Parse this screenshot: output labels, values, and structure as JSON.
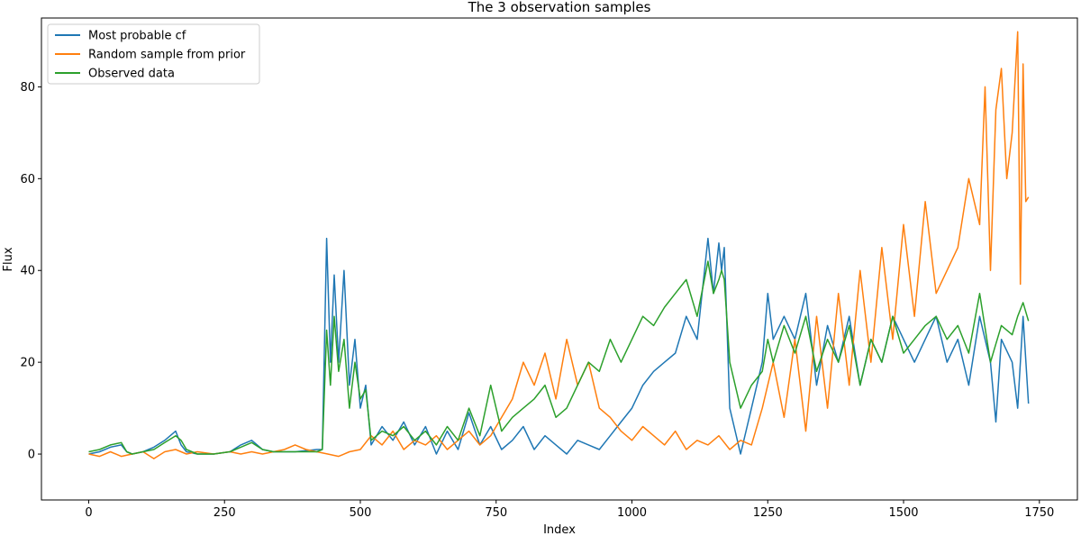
{
  "chart_data": {
    "type": "line",
    "title": "The 3 observation samples",
    "xlabel": "Index",
    "ylabel": "Flux",
    "xlim": [
      -87,
      1820
    ],
    "ylim": [
      -10,
      95
    ],
    "xticks": [
      0,
      250,
      500,
      750,
      1000,
      1250,
      1500,
      1750
    ],
    "yticks": [
      0,
      20,
      40,
      60,
      80
    ],
    "grid": false,
    "legend_position": "top-left",
    "series": [
      {
        "name": "Most probable cf",
        "color": "#1f77b4",
        "x": [
          0,
          20,
          40,
          60,
          70,
          80,
          100,
          120,
          140,
          160,
          170,
          180,
          200,
          230,
          260,
          280,
          300,
          320,
          340,
          380,
          420,
          430,
          438,
          445,
          452,
          460,
          470,
          480,
          490,
          500,
          510,
          520,
          540,
          560,
          580,
          600,
          620,
          640,
          660,
          680,
          700,
          720,
          740,
          760,
          780,
          800,
          820,
          840,
          860,
          880,
          900,
          920,
          940,
          960,
          980,
          1000,
          1020,
          1040,
          1060,
          1080,
          1100,
          1120,
          1140,
          1150,
          1160,
          1165,
          1170,
          1180,
          1200,
          1220,
          1240,
          1250,
          1260,
          1280,
          1300,
          1320,
          1340,
          1360,
          1380,
          1400,
          1420,
          1440,
          1460,
          1480,
          1500,
          1520,
          1540,
          1560,
          1580,
          1600,
          1620,
          1640,
          1660,
          1670,
          1680,
          1700,
          1710,
          1720,
          1730
        ],
        "y": [
          0,
          0.5,
          1.5,
          2,
          0.5,
          0,
          0.5,
          1.5,
          3,
          5,
          2,
          0.5,
          0,
          0,
          0.5,
          2,
          3,
          1,
          0.5,
          0.5,
          1,
          1,
          47,
          20,
          39,
          20,
          40,
          15,
          25,
          10,
          15,
          2,
          6,
          3,
          7,
          2,
          6,
          0,
          5,
          1,
          9,
          2,
          6,
          1,
          3,
          6,
          1,
          4,
          2,
          0,
          3,
          2,
          1,
          4,
          7,
          10,
          15,
          18,
          20,
          22,
          30,
          25,
          47,
          35,
          46,
          40,
          45,
          10,
          0,
          10,
          20,
          35,
          25,
          30,
          25,
          35,
          15,
          28,
          20,
          30,
          15,
          25,
          20,
          30,
          25,
          20,
          25,
          30,
          20,
          25,
          15,
          30,
          20,
          7,
          25,
          20,
          10,
          30,
          11
        ]
      },
      {
        "name": "Random sample from prior",
        "color": "#ff7f0e",
        "x": [
          0,
          20,
          40,
          60,
          80,
          100,
          120,
          140,
          160,
          180,
          200,
          230,
          260,
          280,
          300,
          320,
          340,
          360,
          380,
          400,
          420,
          440,
          460,
          480,
          500,
          520,
          540,
          560,
          580,
          600,
          620,
          640,
          660,
          680,
          700,
          720,
          740,
          760,
          780,
          800,
          820,
          840,
          860,
          880,
          900,
          920,
          940,
          960,
          980,
          1000,
          1020,
          1040,
          1060,
          1080,
          1100,
          1120,
          1140,
          1160,
          1180,
          1200,
          1220,
          1240,
          1260,
          1280,
          1300,
          1320,
          1340,
          1360,
          1380,
          1400,
          1420,
          1440,
          1460,
          1480,
          1500,
          1520,
          1540,
          1560,
          1580,
          1600,
          1620,
          1640,
          1650,
          1660,
          1670,
          1680,
          1690,
          1700,
          1710,
          1715,
          1720,
          1725,
          1730
        ],
        "y": [
          0,
          -0.5,
          0.5,
          -0.5,
          0,
          0.5,
          -1,
          0.5,
          1,
          0,
          0.5,
          0,
          0.5,
          0,
          0.5,
          0,
          0.5,
          1,
          2,
          1,
          0.5,
          0,
          -0.5,
          0.5,
          1,
          4,
          2,
          5,
          1,
          3,
          2,
          4,
          1,
          3,
          5,
          2,
          4,
          8,
          12,
          20,
          15,
          22,
          12,
          25,
          15,
          20,
          10,
          8,
          5,
          3,
          6,
          4,
          2,
          5,
          1,
          3,
          2,
          4,
          1,
          3,
          2,
          10,
          20,
          8,
          25,
          5,
          30,
          10,
          35,
          15,
          40,
          20,
          45,
          25,
          50,
          30,
          55,
          35,
          40,
          45,
          60,
          50,
          80,
          40,
          75,
          84,
          60,
          70,
          92,
          37,
          85,
          55,
          56
        ]
      },
      {
        "name": "Observed data",
        "color": "#2ca02c",
        "x": [
          0,
          20,
          40,
          60,
          70,
          80,
          100,
          120,
          140,
          160,
          170,
          180,
          200,
          230,
          260,
          280,
          300,
          320,
          340,
          380,
          420,
          430,
          438,
          445,
          452,
          460,
          470,
          480,
          490,
          500,
          510,
          520,
          540,
          560,
          580,
          600,
          620,
          640,
          660,
          680,
          700,
          720,
          740,
          760,
          780,
          800,
          820,
          840,
          860,
          880,
          900,
          920,
          940,
          960,
          980,
          1000,
          1020,
          1040,
          1060,
          1080,
          1100,
          1120,
          1140,
          1150,
          1160,
          1165,
          1170,
          1180,
          1200,
          1220,
          1240,
          1250,
          1260,
          1280,
          1300,
          1320,
          1340,
          1360,
          1380,
          1400,
          1420,
          1440,
          1460,
          1480,
          1500,
          1520,
          1540,
          1560,
          1580,
          1600,
          1620,
          1640,
          1660,
          1670,
          1680,
          1700,
          1710,
          1720,
          1730
        ],
        "y": [
          0.5,
          1,
          2,
          2.5,
          0.5,
          0,
          0.5,
          1,
          2.5,
          4,
          3,
          1,
          0,
          0,
          0.5,
          1.5,
          2.5,
          1,
          0.5,
          0.5,
          0.5,
          1,
          27,
          15,
          30,
          18,
          25,
          10,
          20,
          12,
          14,
          3,
          5,
          4,
          6,
          3,
          5,
          2,
          6,
          3,
          10,
          4,
          15,
          5,
          8,
          10,
          12,
          15,
          8,
          10,
          15,
          20,
          18,
          25,
          20,
          25,
          30,
          28,
          32,
          35,
          38,
          30,
          42,
          35,
          38,
          40,
          38,
          20,
          10,
          15,
          18,
          25,
          20,
          28,
          22,
          30,
          18,
          25,
          20,
          28,
          15,
          25,
          20,
          30,
          22,
          25,
          28,
          30,
          25,
          28,
          22,
          35,
          20,
          24,
          28,
          26,
          30,
          33,
          29
        ]
      }
    ]
  }
}
